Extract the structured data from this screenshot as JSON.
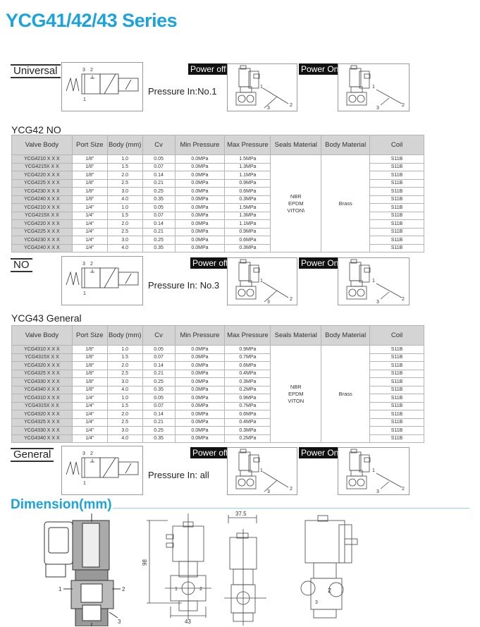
{
  "title": "YCG41/42/43 Series",
  "blocks": [
    {
      "mode": "Universal",
      "pressure": "Pressure In:No.1",
      "power_off": "Power off",
      "power_on": "Power On"
    },
    {
      "mode": "NO",
      "pressure": "Pressure In:  No.3",
      "power_off": "Power off",
      "power_on": "Power On"
    },
    {
      "mode": "General",
      "pressure": "Pressure In:  all",
      "power_off": "Power off",
      "power_on": "Power On"
    }
  ],
  "port_labels": {
    "p1": "1",
    "p2": "2",
    "p3": "3"
  },
  "headers": [
    "Valve Body",
    "Port Size",
    "Body (mm)",
    "Cv",
    "Min Pressure",
    "Max Pressure",
    "Seals Material",
    "Body Material",
    "Coil"
  ],
  "tables": [
    {
      "title": "YCG42 NO",
      "seals": "NBR\nEPDM\nVITON\\",
      "body_material": "Brass",
      "rows": [
        [
          "YCG4210 X X X",
          "1/8\"",
          "1.0",
          "0.05",
          "0.0MPa",
          "1.5MPa",
          "S11B"
        ],
        [
          "YCG4215X X X",
          "1/8\"",
          "1.5",
          "0.07",
          "0.0MPa",
          "1.3MPa",
          "S11B"
        ],
        [
          "YCG4220 X X X",
          "1/8\"",
          "2.0",
          "0.14",
          "0.0MPa",
          "1.1MPa",
          "S11B"
        ],
        [
          "YCG4225 X X X",
          "1/8\"",
          "2.5",
          "0.21",
          "0.0MPa",
          "0.9MPa",
          "S11B"
        ],
        [
          "YCG4230 X X X",
          "1/8\"",
          "3.0",
          "0.25",
          "0.0MPa",
          "0.6MPa",
          "S11B"
        ],
        [
          "YCG4240 X X X",
          "1/8\"",
          "4.0",
          "0.35",
          "0.0MPa",
          "0.3MPa",
          "S11B"
        ],
        [
          "YCG4210 X X X",
          "1/4\"",
          "1.0",
          "0.05",
          "0.0MPa",
          "1.5MPa",
          "S11B"
        ],
        [
          "YCG4215X X X",
          "1/4\"",
          "1.5",
          "0.07",
          "0.0MPa",
          "1.3MPa",
          "S11B"
        ],
        [
          "YCG4220 X X X",
          "1/4\"",
          "2.0",
          "0.14",
          "0.0MPa",
          "1.1MPa",
          "S11B"
        ],
        [
          "YCG4225 X X X",
          "1/4\"",
          "2.5",
          "0.21",
          "0.0MPa",
          "0.9MPa",
          "S11B"
        ],
        [
          "YCG4230 X X X",
          "1/4\"",
          "3.0",
          "0.25",
          "0.0MPa",
          "0.6MPa",
          "S11B"
        ],
        [
          "YCG4240 X X X",
          "1/4\"",
          "4.0",
          "0.35",
          "0.0MPa",
          "0.3MPa",
          "S11B"
        ]
      ]
    },
    {
      "title": "YCG43 General",
      "seals": "NBR\nEPDM\nVITON",
      "body_material": "Brass",
      "rows": [
        [
          "YCG4310 X X X",
          "1/8\"",
          "1.0",
          "0.05",
          "0.0MPa",
          "0.9MPa",
          "S11B"
        ],
        [
          "YCG4315X X X",
          "1/8\"",
          "1.5",
          "0.07",
          "0.0MPa",
          "0.7MPa",
          "S11B"
        ],
        [
          "YCG4320 X X X",
          "1/8\"",
          "2.0",
          "0.14",
          "0.0MPa",
          "0.6MPa",
          "S11B"
        ],
        [
          "YCG4325 X X X",
          "1/8\"",
          "2.5",
          "0.21",
          "0.0MPa",
          "0.4MPa",
          "S11B"
        ],
        [
          "YCG4330 X X X",
          "1/8\"",
          "3.0",
          "0.25",
          "0.0MPa",
          "0.3MPa",
          "S11B"
        ],
        [
          "YCG4340 X X X",
          "1/8\"",
          "4.0",
          "0.35",
          "0.0MPa",
          "0.2MPa",
          "S11B"
        ],
        [
          "YCG4310 X X X",
          "1/4\"",
          "1.0",
          "0.05",
          "0.0MPa",
          "0.9MPa",
          "S11B"
        ],
        [
          "YCG4315X X X",
          "1/4\"",
          "1.5",
          "0.07",
          "0.0MPa",
          "0.7MPa",
          "S11B"
        ],
        [
          "YCG4320 X X X",
          "1/4\"",
          "2.0",
          "0.14",
          "0.0MPa",
          "0.6MPa",
          "S11B"
        ],
        [
          "YCG4325 X X X",
          "1/4\"",
          "2.5",
          "0.21",
          "0.0MPa",
          "0.4MPa",
          "S11B"
        ],
        [
          "YCG4330 X X X",
          "1/4\"",
          "3.0",
          "0.25",
          "0.0MPa",
          "0.3MPa",
          "S11B"
        ],
        [
          "YCG4340 X X X",
          "1/4\"",
          "4.0",
          "0.35",
          "0.0MPa",
          "0.2MPa",
          "S11B"
        ]
      ]
    }
  ],
  "dimension": {
    "title": "Dimension(mm)",
    "height": "98",
    "width": "43",
    "depth": "37.5"
  },
  "colors": {
    "accent": "#1ba3dd",
    "header_bg": "#d4d4d4"
  }
}
